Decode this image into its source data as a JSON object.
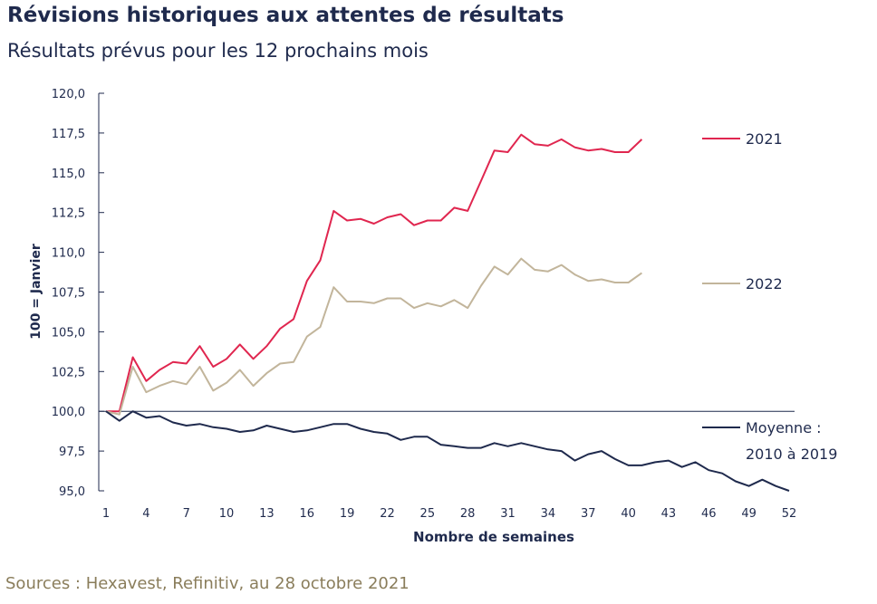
{
  "header": {
    "title": "Révisions historiques aux attentes de résultats",
    "subtitle": "Résultats prévus pour les 12 prochains mois"
  },
  "footer": {
    "source": "Sources : Hexavest, Refinitiv, au 28 octobre 2021"
  },
  "colors": {
    "series_2021": "#e0264f",
    "series_2022": "#c2b59b",
    "series_avg": "#1f2a4d",
    "axis": "#1f2a4d"
  },
  "chart_data": {
    "type": "line",
    "title": "Révisions historiques aux attentes de résultats",
    "subtitle": "Résultats prévus pour les 12 prochains mois",
    "xlabel": "Nombre de semaines",
    "ylabel": "100 = Janvier",
    "xlim": [
      1,
      52
    ],
    "ylim": [
      95,
      120
    ],
    "xticks": [
      1,
      4,
      7,
      10,
      13,
      16,
      19,
      22,
      25,
      28,
      31,
      34,
      37,
      40,
      43,
      46,
      49,
      52
    ],
    "yticks": [
      {
        "v": 95,
        "label": "95,0"
      },
      {
        "v": 97.5,
        "label": "97,5"
      },
      {
        "v": 100,
        "label": "100,0"
      },
      {
        "v": 102.5,
        "label": "102,5"
      },
      {
        "v": 105,
        "label": "105,0"
      },
      {
        "v": 107.5,
        "label": "107,5"
      },
      {
        "v": 110,
        "label": "110,0"
      },
      {
        "v": 112.5,
        "label": "112,5"
      },
      {
        "v": 115,
        "label": "115,0"
      },
      {
        "v": 117.5,
        "label": "117,5"
      },
      {
        "v": 120,
        "label": "120,0"
      }
    ],
    "grid": false,
    "legend": "right",
    "series": [
      {
        "name": "2021",
        "key": "series_2021",
        "label_lines": [
          "2021"
        ],
        "x": [
          1,
          2,
          3,
          4,
          5,
          6,
          7,
          8,
          9,
          10,
          11,
          12,
          13,
          14,
          15,
          16,
          17,
          18,
          19,
          20,
          21,
          22,
          23,
          24,
          25,
          26,
          27,
          28,
          29,
          30,
          31,
          32,
          33,
          34,
          35,
          36,
          37,
          38,
          39,
          40,
          41
        ],
        "values": [
          100,
          100,
          103.4,
          101.9,
          102.6,
          103.1,
          103.0,
          104.1,
          102.8,
          103.3,
          104.2,
          103.3,
          104.1,
          105.2,
          105.8,
          108.2,
          109.5,
          112.6,
          112.0,
          112.1,
          111.8,
          112.2,
          112.4,
          111.7,
          112.0,
          112.0,
          112.8,
          112.6,
          114.5,
          116.4,
          116.3,
          117.4,
          116.8,
          116.7,
          117.1,
          116.6,
          116.4,
          116.5,
          116.3,
          116.3,
          117.1
        ]
      },
      {
        "name": "2022",
        "key": "series_2022",
        "label_lines": [
          "2022"
        ],
        "x": [
          1,
          2,
          3,
          4,
          5,
          6,
          7,
          8,
          9,
          10,
          11,
          12,
          13,
          14,
          15,
          16,
          17,
          18,
          19,
          20,
          21,
          22,
          23,
          24,
          25,
          26,
          27,
          28,
          29,
          30,
          31,
          32,
          33,
          34,
          35,
          36,
          37,
          38,
          39,
          40,
          41
        ],
        "values": [
          100,
          99.8,
          102.8,
          101.2,
          101.6,
          101.9,
          101.7,
          102.8,
          101.3,
          101.8,
          102.6,
          101.6,
          102.4,
          103.0,
          103.1,
          104.7,
          105.3,
          107.8,
          106.9,
          106.9,
          106.8,
          107.1,
          107.1,
          106.5,
          106.8,
          106.6,
          107.0,
          106.5,
          107.9,
          109.1,
          108.6,
          109.6,
          108.9,
          108.8,
          109.2,
          108.6,
          108.2,
          108.3,
          108.1,
          108.1,
          108.7
        ]
      },
      {
        "name": "Moyenne : 2010 à 2019",
        "key": "series_avg",
        "label_lines": [
          "Moyenne :",
          "2010 à 2019"
        ],
        "x": [
          1,
          2,
          3,
          4,
          5,
          6,
          7,
          8,
          9,
          10,
          11,
          12,
          13,
          14,
          15,
          16,
          17,
          18,
          19,
          20,
          21,
          22,
          23,
          24,
          25,
          26,
          27,
          28,
          29,
          30,
          31,
          32,
          33,
          34,
          35,
          36,
          37,
          38,
          39,
          40,
          41,
          42,
          43,
          44,
          45,
          46,
          47,
          48,
          49,
          50,
          51,
          52
        ],
        "values": [
          100,
          99.4,
          100,
          99.6,
          99.7,
          99.3,
          99.1,
          99.2,
          99.0,
          98.9,
          98.7,
          98.8,
          99.1,
          98.9,
          98.7,
          98.8,
          99.0,
          99.2,
          99.2,
          98.9,
          98.7,
          98.6,
          98.2,
          98.4,
          98.4,
          97.9,
          97.8,
          97.7,
          97.7,
          98.0,
          97.8,
          98.0,
          97.8,
          97.6,
          97.5,
          96.9,
          97.3,
          97.5,
          97.0,
          96.6,
          96.6,
          96.8,
          96.9,
          96.5,
          96.8,
          96.3,
          96.1,
          95.6,
          95.3,
          95.7,
          95.3,
          95.0
        ]
      }
    ]
  }
}
